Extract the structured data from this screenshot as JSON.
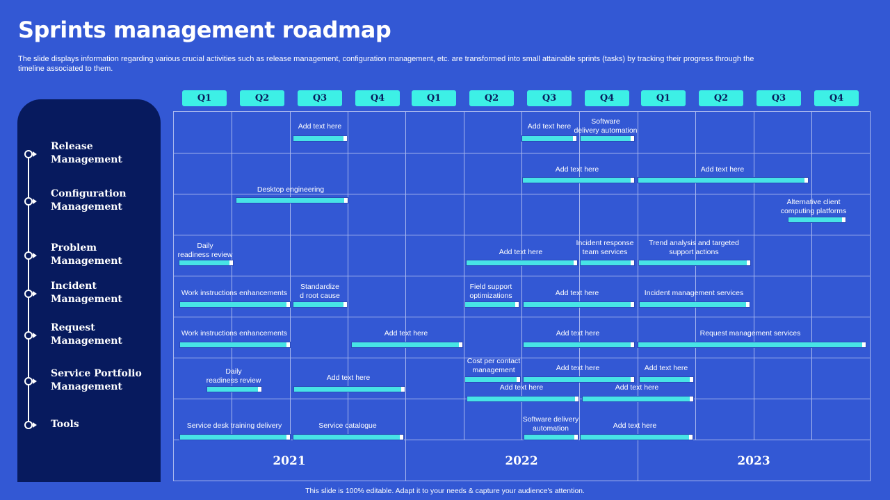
{
  "title": "Sprints management roadmap",
  "subtitle": "The slide displays information regarding various crucial activities such as release management, configuration management, etc. are transformed into small attainable sprints (tasks) by tracking their progress through the timeline associated to them.",
  "footer": "This slide is 100% editable. Adapt it to your needs & capture your audience's attention.",
  "quarters": [
    "Q1",
    "Q2",
    "Q3",
    "Q4",
    "Q1",
    "Q2",
    "Q3",
    "Q4",
    "Q1",
    "Q2",
    "Q3",
    "Q4"
  ],
  "years": [
    "2021",
    "2022",
    "2023"
  ],
  "sidebar": {
    "items": [
      {
        "line1": "Release",
        "line2": "Management"
      },
      {
        "line1": "Configuration",
        "line2": "Management"
      },
      {
        "line1": "Problem",
        "line2": "Management"
      },
      {
        "line1": "Incident",
        "line2": "Management"
      },
      {
        "line1": "Request",
        "line2": "Management"
      },
      {
        "line1": "Service Portfolio",
        "line2": "Management"
      },
      {
        "line1": "Tools",
        "line2": ""
      }
    ]
  },
  "tasks": {
    "t1": {
      "line1": "Add text here",
      "line2": ""
    },
    "t2": {
      "line1": "Add text here",
      "line2": ""
    },
    "t3": {
      "line1": "Software",
      "line2": "delivery automation"
    },
    "t4": {
      "line1": "Add text here",
      "line2": ""
    },
    "t5": {
      "line1": "Add text here",
      "line2": ""
    },
    "t6": {
      "line1": "Desktop engineering",
      "line2": ""
    },
    "t7": {
      "line1": "Alternative client",
      "line2": "computing platforms"
    },
    "t8": {
      "line1": "Daily",
      "line2": "readiness review"
    },
    "t9": {
      "line1": "Add text here",
      "line2": ""
    },
    "t10": {
      "line1": "Incident response",
      "line2": "team services"
    },
    "t11": {
      "line1": "Trend analysis and targeted",
      "line2": "support actions"
    },
    "t12": {
      "line1": "Work instructions enhancements",
      "line2": ""
    },
    "t13": {
      "line1": "Standardize",
      "line2": "d root cause"
    },
    "t14": {
      "line1": "Field support",
      "line2": "optimizations"
    },
    "t15": {
      "line1": "Add text here",
      "line2": ""
    },
    "t16": {
      "line1": "Incident management services",
      "line2": ""
    },
    "t17": {
      "line1": "Work instructions enhancements",
      "line2": ""
    },
    "t18": {
      "line1": "Add text here",
      "line2": ""
    },
    "t19": {
      "line1": "Add text here",
      "line2": ""
    },
    "t20": {
      "line1": "Request management  services",
      "line2": ""
    },
    "t21": {
      "line1": "Daily",
      "line2": "readiness review"
    },
    "t22": {
      "line1": "Add text here",
      "line2": ""
    },
    "t23": {
      "line1": "Cost per contact",
      "line2": "management"
    },
    "t24": {
      "line1": "Add text here",
      "line2": ""
    },
    "t25": {
      "line1": "Add text here",
      "line2": ""
    },
    "t26": {
      "line1": "Add text here",
      "line2": ""
    },
    "t27": {
      "line1": "Add text here",
      "line2": ""
    },
    "t28": {
      "line1": "Service desk training delivery",
      "line2": ""
    },
    "t29": {
      "line1": "Service catalogue",
      "line2": ""
    },
    "t30": {
      "line1": "Software delivery",
      "line2": "automation"
    },
    "t31": {
      "line1": "Add text here",
      "line2": ""
    }
  },
  "colors": {
    "background": "#3358d4",
    "sidebar": "#071a5e",
    "quarter_pill": "#3df0e6",
    "bar": "#47e4e6"
  }
}
